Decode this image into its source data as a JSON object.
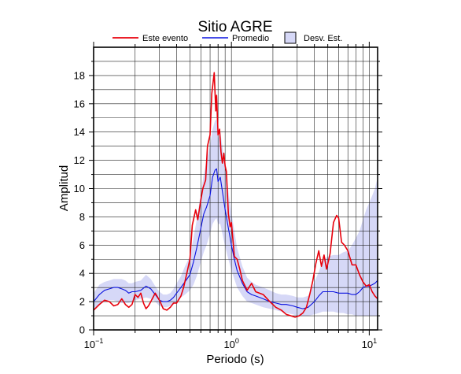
{
  "chart_data": {
    "type": "line",
    "title": "Sitio AGRE",
    "xlabel": "Periodo (s)",
    "ylabel": "Amplitud",
    "xscale": "log",
    "xlim": [
      0.1,
      11.5
    ],
    "ylim": [
      0,
      20
    ],
    "grid": true,
    "legend_position": "top",
    "y_ticks": [
      "0",
      "2",
      "4",
      "6",
      "8",
      "10",
      "12",
      "14",
      "16",
      "18"
    ],
    "x_ticks": [
      {
        "base": "10",
        "exp": "−1",
        "value": 0.1
      },
      {
        "base": "10",
        "exp": "0",
        "value": 1
      },
      {
        "base": "10",
        "exp": "1",
        "value": 10
      }
    ],
    "legend": {
      "event": "Este evento",
      "mean": "Promedio",
      "std": "Desv. Est."
    },
    "colors": {
      "event": "#e8000b",
      "mean": "#0a12e0",
      "std_fill": "#d6d8f7",
      "std_edge": "#000000"
    },
    "series": [
      {
        "name": "Este evento",
        "x": [
          0.1,
          0.11,
          0.12,
          0.13,
          0.14,
          0.15,
          0.16,
          0.17,
          0.18,
          0.19,
          0.2,
          0.21,
          0.22,
          0.23,
          0.24,
          0.25,
          0.26,
          0.28,
          0.3,
          0.32,
          0.34,
          0.36,
          0.38,
          0.4,
          0.43,
          0.45,
          0.48,
          0.5,
          0.52,
          0.55,
          0.57,
          0.6,
          0.62,
          0.65,
          0.67,
          0.7,
          0.72,
          0.75,
          0.77,
          0.78,
          0.8,
          0.82,
          0.84,
          0.86,
          0.88,
          0.9,
          0.92,
          0.95,
          0.98,
          1.0,
          1.05,
          1.1,
          1.15,
          1.2,
          1.3,
          1.4,
          1.5,
          1.7,
          1.9,
          2.1,
          2.3,
          2.5,
          2.7,
          2.9,
          3.1,
          3.3,
          3.5,
          3.7,
          3.9,
          4.1,
          4.3,
          4.5,
          4.7,
          4.9,
          5.2,
          5.5,
          5.8,
          6.0,
          6.3,
          6.6,
          7.0,
          7.5,
          8.0,
          8.5,
          9.0,
          9.5,
          10.0,
          10.5,
          11.0,
          11.5
        ],
        "values": [
          1.4,
          1.8,
          2.1,
          2.0,
          1.7,
          1.8,
          2.2,
          1.8,
          1.6,
          1.8,
          2.5,
          2.3,
          2.6,
          1.9,
          1.5,
          1.7,
          2.0,
          2.6,
          2.1,
          1.5,
          1.4,
          1.6,
          1.9,
          1.9,
          2.4,
          3.0,
          4.2,
          5.0,
          7.4,
          8.5,
          7.8,
          9.2,
          10.0,
          10.6,
          13.0,
          13.8,
          16.7,
          18.2,
          15.5,
          16.6,
          13.8,
          14.2,
          12.6,
          11.8,
          12.5,
          11.6,
          11.2,
          8.2,
          7.3,
          7.6,
          5.2,
          5.0,
          4.3,
          3.5,
          2.8,
          3.3,
          2.7,
          2.5,
          2.0,
          1.6,
          1.4,
          1.1,
          1.0,
          0.9,
          1.0,
          1.2,
          1.6,
          2.5,
          3.5,
          4.7,
          5.6,
          4.5,
          5.3,
          4.3,
          5.4,
          7.6,
          8.1,
          7.9,
          6.2,
          6.0,
          5.6,
          4.6,
          4.6,
          3.9,
          3.4,
          3.1,
          3.2,
          2.7,
          2.4,
          2.2
        ]
      },
      {
        "name": "Promedio",
        "x": [
          0.1,
          0.11,
          0.12,
          0.13,
          0.14,
          0.15,
          0.16,
          0.17,
          0.18,
          0.19,
          0.2,
          0.22,
          0.24,
          0.26,
          0.28,
          0.3,
          0.32,
          0.34,
          0.36,
          0.38,
          0.4,
          0.43,
          0.46,
          0.5,
          0.53,
          0.56,
          0.6,
          0.63,
          0.66,
          0.7,
          0.73,
          0.76,
          0.78,
          0.8,
          0.83,
          0.86,
          0.9,
          0.95,
          1.0,
          1.05,
          1.1,
          1.2,
          1.3,
          1.4,
          1.5,
          1.7,
          1.9,
          2.1,
          2.3,
          2.5,
          2.8,
          3.0,
          3.3,
          3.6,
          4.0,
          4.3,
          4.6,
          5.0,
          5.5,
          6.0,
          6.5,
          7.0,
          7.5,
          8.0,
          8.5,
          9.0,
          9.5,
          10.0,
          10.5,
          11.0,
          11.5
        ],
        "values": [
          2.0,
          2.5,
          2.8,
          2.9,
          3.0,
          3.0,
          2.9,
          2.8,
          2.6,
          2.7,
          2.7,
          2.8,
          3.1,
          2.9,
          2.5,
          2.1,
          2.0,
          2.0,
          2.1,
          2.3,
          2.6,
          3.0,
          3.4,
          3.9,
          4.8,
          5.8,
          7.2,
          8.2,
          8.7,
          9.5,
          10.8,
          11.3,
          11.4,
          10.5,
          10.8,
          9.8,
          8.5,
          7.2,
          6.0,
          5.0,
          4.2,
          3.3,
          2.7,
          2.5,
          2.4,
          2.2,
          2.0,
          1.9,
          1.8,
          1.8,
          1.7,
          1.6,
          1.5,
          1.6,
          2.0,
          2.4,
          2.7,
          2.7,
          2.7,
          2.6,
          2.6,
          2.6,
          2.5,
          2.5,
          2.7,
          3.0,
          3.1,
          3.1,
          3.2,
          3.3,
          3.5
        ]
      },
      {
        "name": "Desv. Est.",
        "x": [
          0.1,
          0.11,
          0.12,
          0.13,
          0.14,
          0.15,
          0.16,
          0.17,
          0.18,
          0.19,
          0.2,
          0.22,
          0.24,
          0.26,
          0.28,
          0.3,
          0.32,
          0.34,
          0.36,
          0.38,
          0.4,
          0.43,
          0.46,
          0.5,
          0.53,
          0.56,
          0.6,
          0.63,
          0.66,
          0.7,
          0.73,
          0.76,
          0.78,
          0.8,
          0.83,
          0.86,
          0.9,
          0.95,
          1.0,
          1.05,
          1.1,
          1.2,
          1.3,
          1.4,
          1.5,
          1.7,
          1.9,
          2.1,
          2.3,
          2.5,
          2.8,
          3.0,
          3.3,
          3.6,
          4.0,
          4.3,
          4.6,
          5.0,
          5.5,
          6.0,
          6.5,
          7.0,
          7.5,
          8.0,
          8.5,
          9.0,
          9.5,
          10.0,
          10.5,
          11.0,
          11.5
        ],
        "lower": [
          1.5,
          1.8,
          2.0,
          2.1,
          2.1,
          2.0,
          1.9,
          1.9,
          1.9,
          2.0,
          2.1,
          2.2,
          2.3,
          2.2,
          2.0,
          1.7,
          1.6,
          1.6,
          1.7,
          1.8,
          2.0,
          2.3,
          2.5,
          2.8,
          3.2,
          3.8,
          4.8,
          5.5,
          6.0,
          6.8,
          7.5,
          7.8,
          7.9,
          7.5,
          7.5,
          6.8,
          5.9,
          5.0,
          4.2,
          3.6,
          3.0,
          2.4,
          2.0,
          1.9,
          1.8,
          1.6,
          1.5,
          1.4,
          1.3,
          1.2,
          1.1,
          1.0,
          1.0,
          1.0,
          1.1,
          1.2,
          1.3,
          1.3,
          1.3,
          1.2,
          1.2,
          1.1,
          1.1,
          1.0,
          1.0,
          1.0,
          1.0,
          1.0,
          1.0,
          1.0,
          1.0
        ],
        "upper": [
          2.6,
          3.2,
          3.4,
          3.5,
          3.6,
          3.6,
          3.6,
          3.5,
          3.3,
          3.3,
          3.4,
          3.5,
          3.9,
          3.6,
          3.1,
          2.7,
          2.5,
          2.5,
          2.6,
          2.9,
          3.3,
          3.8,
          4.5,
          5.2,
          6.5,
          7.8,
          9.7,
          11.0,
          12.0,
          13.0,
          14.2,
          14.8,
          14.9,
          13.5,
          14.0,
          13.0,
          11.5,
          9.8,
          8.3,
          7.0,
          5.8,
          4.5,
          3.7,
          3.4,
          3.2,
          3.0,
          2.8,
          2.6,
          2.5,
          2.5,
          2.4,
          2.3,
          2.3,
          2.4,
          3.4,
          4.1,
          4.9,
          5.2,
          5.3,
          5.3,
          5.5,
          5.6,
          6.0,
          6.5,
          7.0,
          7.8,
          8.5,
          9.0,
          9.5,
          10.0,
          10.8
        ]
      }
    ]
  }
}
